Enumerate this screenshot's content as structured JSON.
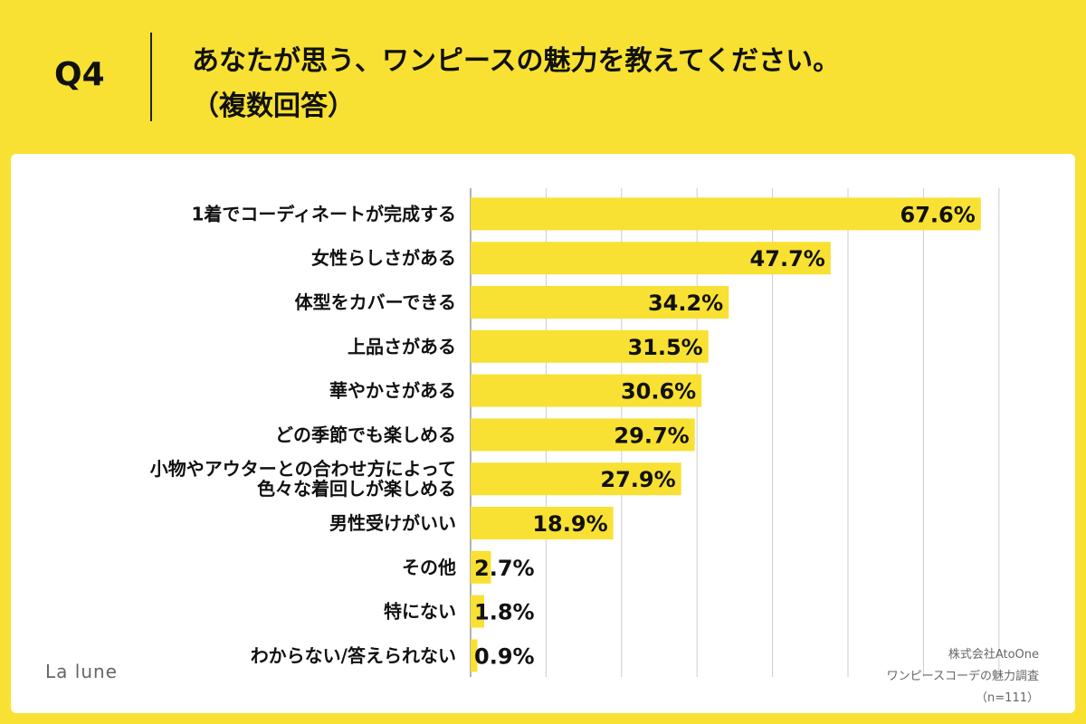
{
  "header": {
    "question": "Q4",
    "title_line1": "あなたが思う、ワンピースの魅力を教えてください。",
    "title_line2": "（複数回答）"
  },
  "brand": "La lune",
  "source": {
    "company": "株式会社AtoOne",
    "survey": "ワンピースコーデの魅力調査",
    "sample": "（n=111）"
  },
  "colors": {
    "background": "#f8e132",
    "bar": "#f8e132",
    "grid": "#cccccc",
    "panel": "#ffffff"
  },
  "chart_data": {
    "type": "bar",
    "orientation": "horizontal",
    "categories": [
      "1着でコーディネートが完成する",
      "女性らしさがある",
      "体型をカバーできる",
      "上品さがある",
      "華やかさがある",
      "どの季節でも楽しめる",
      "小物やアウターとの合わせ方によって\n色々な着回しが楽しめる",
      "男性受けがいい",
      "その他",
      "特にない",
      "わからない/答えられない"
    ],
    "values": [
      67.6,
      47.7,
      34.2,
      31.5,
      30.6,
      29.7,
      27.9,
      18.9,
      2.7,
      1.8,
      0.9
    ],
    "value_labels": [
      "67.6%",
      "47.7%",
      "34.2%",
      "31.5%",
      "30.6%",
      "29.7%",
      "27.9%",
      "18.9%",
      "2.7%",
      "1.8%",
      "0.9%"
    ],
    "unit": "%",
    "xlim": [
      0,
      70
    ],
    "grid": true,
    "title": "あなたが思う、ワンピースの魅力を教えてください。（複数回答）",
    "xlabel": "",
    "ylabel": ""
  }
}
